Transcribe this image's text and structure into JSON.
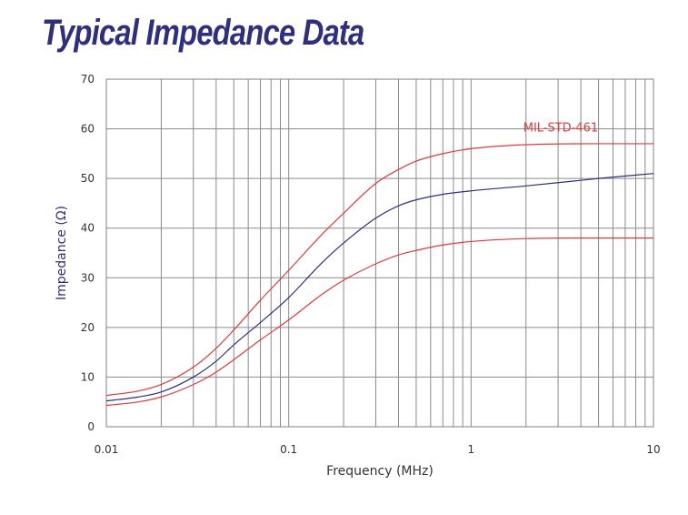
{
  "chart_data": {
    "type": "line",
    "title": "Typical Impedance Data",
    "xlabel": "Frequency (MHz)",
    "ylabel": "Impedance (Ω)",
    "xscale": "log",
    "xlim": [
      0.01,
      10
    ],
    "ylim": [
      0,
      70
    ],
    "x_ticks": [
      {
        "value": 0.01,
        "label": "0.01"
      },
      {
        "value": 0.1,
        "label": "0.1"
      },
      {
        "value": 1,
        "label": "1"
      },
      {
        "value": 10,
        "label": "10"
      }
    ],
    "y_ticks": [
      0,
      10,
      20,
      30,
      40,
      50,
      60,
      70
    ],
    "grid": true,
    "annotations": [
      {
        "text": "MIL-STD-461",
        "x": 2.0,
        "y": 60,
        "color": "#d93a3a"
      }
    ],
    "series": [
      {
        "role": "upper limit",
        "color": "#e03a3a",
        "x": [
          0.01,
          0.015,
          0.02,
          0.03,
          0.04,
          0.05,
          0.07,
          0.1,
          0.15,
          0.2,
          0.3,
          0.4,
          0.5,
          0.7,
          1,
          2,
          5,
          10
        ],
        "y": [
          6.3,
          7.2,
          8.5,
          12.0,
          15.8,
          19.5,
          25.5,
          31.5,
          38.5,
          43.0,
          49.0,
          51.8,
          53.5,
          55.0,
          56.0,
          56.8,
          57.0,
          57.0
        ]
      },
      {
        "role": "typical",
        "color": "#2e2f7f",
        "x": [
          0.01,
          0.015,
          0.02,
          0.03,
          0.04,
          0.05,
          0.07,
          0.1,
          0.15,
          0.2,
          0.3,
          0.4,
          0.5,
          0.7,
          1,
          2,
          5,
          10
        ],
        "y": [
          5.2,
          6.0,
          7.0,
          10.0,
          13.2,
          16.5,
          21.0,
          26.0,
          32.8,
          37.0,
          42.0,
          44.5,
          45.7,
          46.8,
          47.5,
          48.5,
          50.0,
          51.0
        ]
      },
      {
        "role": "lower limit",
        "color": "#e03a3a",
        "x": [
          0.01,
          0.015,
          0.02,
          0.03,
          0.04,
          0.05,
          0.07,
          0.1,
          0.15,
          0.2,
          0.3,
          0.4,
          0.5,
          0.7,
          1,
          2,
          5,
          10
        ],
        "y": [
          4.3,
          5.0,
          6.0,
          8.5,
          11.0,
          13.5,
          17.5,
          21.5,
          26.5,
          29.5,
          32.8,
          34.6,
          35.5,
          36.6,
          37.3,
          37.9,
          38.0,
          38.0
        ]
      }
    ]
  }
}
